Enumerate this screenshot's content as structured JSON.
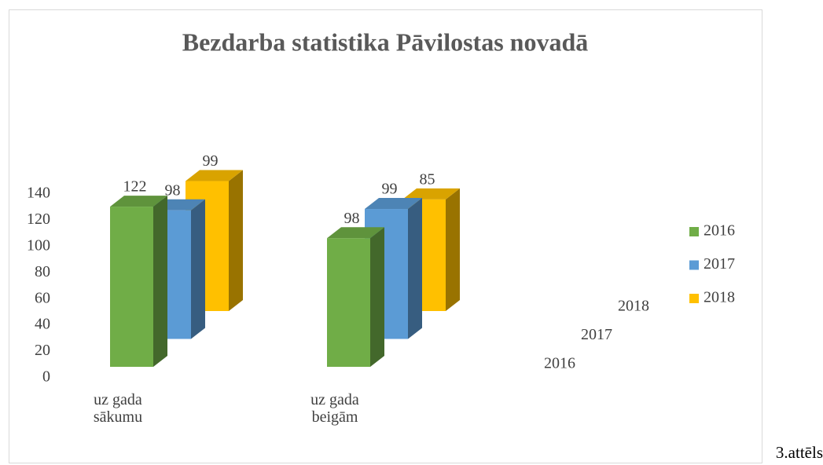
{
  "chart_data": {
    "type": "bar3d",
    "title": "Bezdarba statistika Pāvilostas novadā",
    "categories": [
      "uz gada sākumu",
      "uz gada beigām"
    ],
    "series": [
      {
        "name": "2016",
        "color": "#70ad47",
        "values": [
          122,
          98
        ]
      },
      {
        "name": "2017",
        "color": "#5b9bd5",
        "values": [
          98,
          99
        ]
      },
      {
        "name": "2018",
        "color": "#ffc000",
        "values": [
          99,
          85
        ]
      }
    ],
    "ylim": [
      0,
      140
    ],
    "yticks": [
      0,
      20,
      40,
      60,
      80,
      100,
      120,
      140
    ],
    "legend": "right",
    "grid": false
  },
  "caption": "3.attēls"
}
